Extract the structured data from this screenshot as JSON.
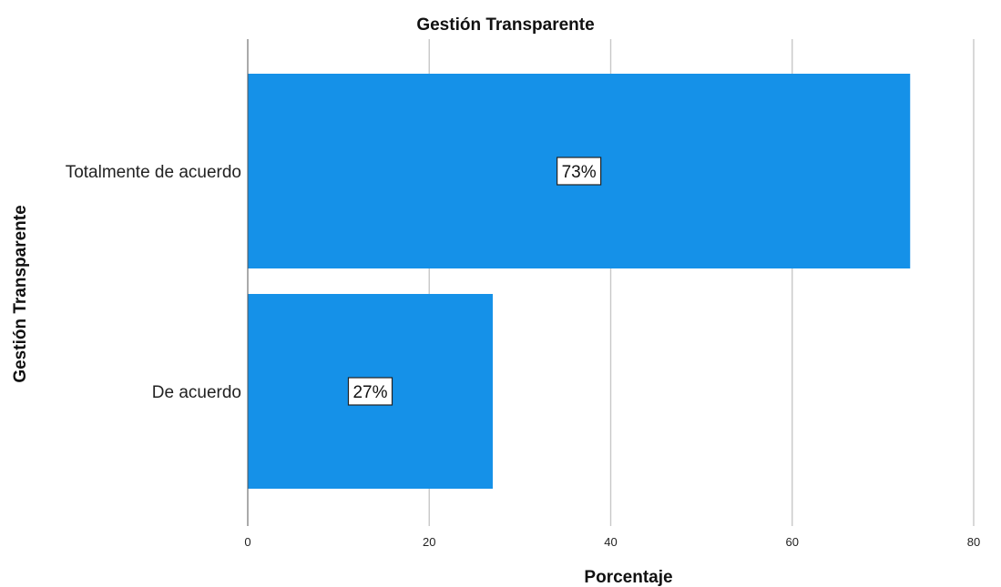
{
  "chart_data": {
    "type": "bar",
    "orientation": "horizontal",
    "title": "Gestión Transparente",
    "xlabel": "Porcentaje",
    "ylabel": "Gestión Transparente",
    "categories": [
      "Totalmente de acuerdo",
      "De acuerdo"
    ],
    "values": [
      73,
      27
    ],
    "data_labels": [
      "73%",
      "27%"
    ],
    "xlim": [
      0,
      80
    ],
    "xticks": [
      0,
      20,
      40,
      60,
      80
    ],
    "grid": true,
    "bar_color": "#1591e8"
  }
}
